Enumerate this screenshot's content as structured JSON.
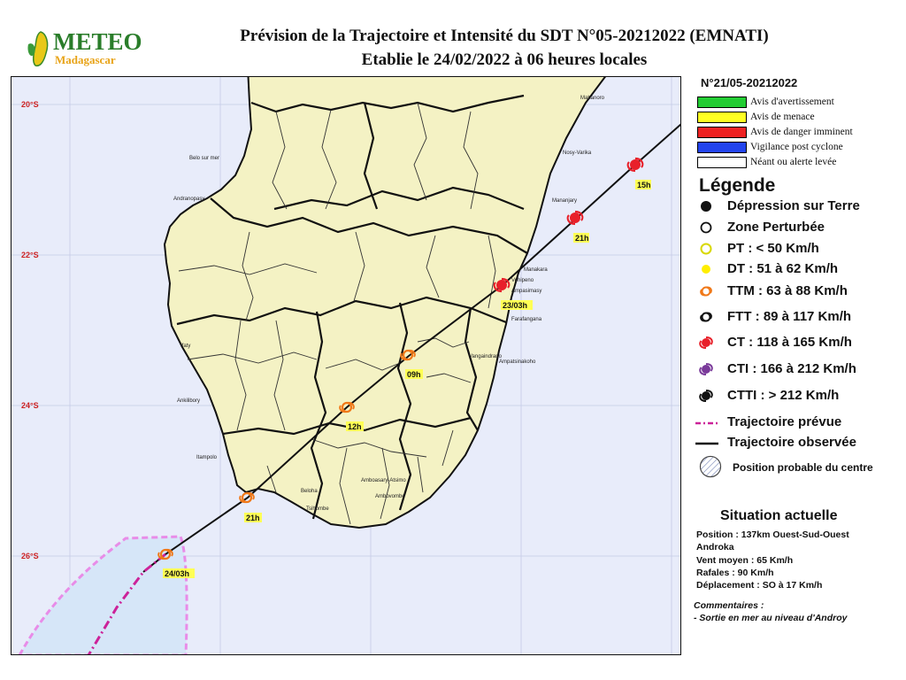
{
  "header": {
    "logo_word": "METEO",
    "logo_sub": "Madagascar",
    "title_line1": "Prévision de la Trajectoire et Intensité du SDT N°05-20212022 (EMNATI)",
    "title_line2": "Etablie le 24/02/2022 à 06 heures locales"
  },
  "map": {
    "latitude_labels": [
      "20°S",
      "22°S",
      "24°S",
      "26°S"
    ],
    "places": [
      {
        "name": "Mahanoro"
      },
      {
        "name": "Nosy-Varika"
      },
      {
        "name": "Belo sur mer"
      },
      {
        "name": "Andranopasy"
      },
      {
        "name": "Mananjary"
      },
      {
        "name": "Manakara"
      },
      {
        "name": "Vohipeno"
      },
      {
        "name": "Ampasimasy"
      },
      {
        "name": "Farafangana"
      },
      {
        "name": "Vangaindrano"
      },
      {
        "name": "Ampatsinakoho"
      },
      {
        "name": "Ifaty"
      },
      {
        "name": "Ankilibory"
      },
      {
        "name": "Itampolo"
      },
      {
        "name": "Beloha"
      },
      {
        "name": "Tsihombe"
      },
      {
        "name": "Ambovombe"
      },
      {
        "name": "Amboasary-Atsimo"
      }
    ],
    "track_points": [
      {
        "time": "15h",
        "category": "CT"
      },
      {
        "time": "21h",
        "category": "CT"
      },
      {
        "time": "23/03h",
        "category": "CT"
      },
      {
        "time": "09h",
        "category": "TTM"
      },
      {
        "time": "12h",
        "category": "TTM"
      },
      {
        "time": "21h",
        "category": "TTM"
      },
      {
        "time": "24/03h",
        "category": "TTM"
      }
    ]
  },
  "panel": {
    "bulletin_number": "N°21/05-20212022",
    "alerts": [
      {
        "label": "Avis d'avertissement",
        "color": "#22cc33"
      },
      {
        "label": "Avis de menace",
        "color": "#ffff22"
      },
      {
        "label": "Avis de danger imminent",
        "color": "#ee2222"
      },
      {
        "label": "Vigilance post cyclone",
        "color": "#2244ee"
      },
      {
        "label": "Néant ou alerte levée",
        "color": "#ffffff"
      }
    ],
    "legend_title": "Légende",
    "legend_items": [
      {
        "label": "Dépression sur Terre",
        "icon": "filled-black-dot-icon"
      },
      {
        "label": "Zone Perturbée",
        "icon": "open-circle-icon"
      },
      {
        "label": "PT : < 50 Km/h",
        "icon": "yellow-circle-icon"
      },
      {
        "label": "DT : 51 à 62 Km/h",
        "icon": "yellow-dot-icon"
      },
      {
        "label": "TTM : 63 à 88 Km/h",
        "icon": "orange-storm-icon"
      },
      {
        "label": "FTT : 89 à 117 Km/h",
        "icon": "black-storm-icon"
      },
      {
        "label": "CT : 118 à 165 Km/h",
        "icon": "red-cyclone-icon"
      },
      {
        "label": "CTI : 166 à 212 Km/h",
        "icon": "purple-cyclone-icon"
      },
      {
        "label": "CTTI : > 212 Km/h",
        "icon": "black-cyclone-icon"
      },
      {
        "label": "Trajectoire prévue",
        "icon": "dash-dot-magenta-line-icon"
      },
      {
        "label": "Trajectoire observée",
        "icon": "solid-black-line-icon"
      },
      {
        "label": "Position probable du centre",
        "icon": "hatched-circle-icon"
      }
    ],
    "situation": {
      "title": "Situation actuelle",
      "position_line1": "Position : 137km Ouest-Sud-Ouest",
      "position_line2": "Androka",
      "wind": "Vent moyen : 65 Km/h",
      "gusts": "Rafales : 90 Km/h",
      "movement": "Déplacement : SO à 17 Km/h"
    },
    "comments": {
      "title": "Commentaires :",
      "text": "- Sortie en mer au niveau d'Androy"
    }
  },
  "colors": {
    "sea": "#e8ecfa",
    "land": "#f4f2c4",
    "ct": "#e8202a",
    "ttm": "#f07818",
    "forecast_track": "#cc2299",
    "uncertainty": "#e88ce8"
  }
}
